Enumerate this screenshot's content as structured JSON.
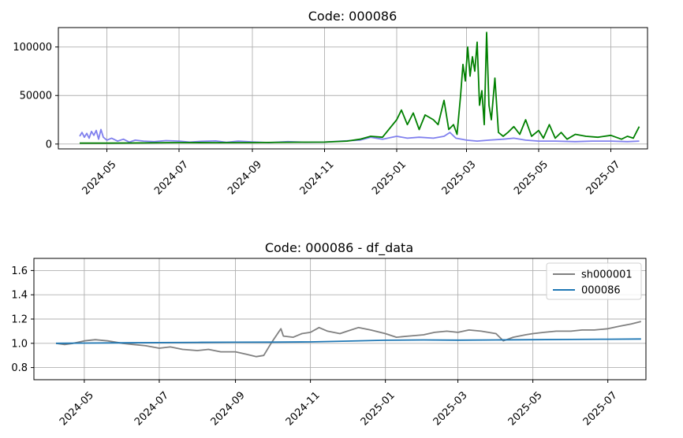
{
  "chart_data": [
    {
      "type": "line",
      "title": "Code: 000086",
      "xlabel": "",
      "ylabel": "",
      "x_range": [
        "2024-03-21",
        "2025-08-01"
      ],
      "ylim": [
        -5000,
        120000
      ],
      "yticks": [
        0,
        50000,
        100000
      ],
      "ytick_labels": [
        "0",
        "50000",
        "100000"
      ],
      "xticks": [
        "2024-05-01",
        "2024-07-01",
        "2024-09-01",
        "2024-11-01",
        "2025-01-01",
        "2025-03-01",
        "2025-05-01",
        "2025-07-01"
      ],
      "xtick_labels": [
        "2024-05",
        "2024-07",
        "2024-09",
        "2024-11",
        "2025-01",
        "2025-03",
        "2025-05",
        "2025-07"
      ],
      "grid": true,
      "legend": "none",
      "series": [
        {
          "color": "#8080ee",
          "x": [
            "2024-04-08",
            "2024-04-10",
            "2024-04-12",
            "2024-04-14",
            "2024-04-16",
            "2024-04-18",
            "2024-04-20",
            "2024-04-22",
            "2024-04-24",
            "2024-04-26",
            "2024-04-28",
            "2024-05-01",
            "2024-05-05",
            "2024-05-10",
            "2024-05-15",
            "2024-05-20",
            "2024-05-25",
            "2024-06-01",
            "2024-06-10",
            "2024-06-20",
            "2024-07-01",
            "2024-07-10",
            "2024-07-20",
            "2024-08-01",
            "2024-08-10",
            "2024-08-20",
            "2024-09-01",
            "2024-09-15",
            "2024-10-01",
            "2024-10-15",
            "2024-11-01",
            "2024-11-15",
            "2024-12-01",
            "2024-12-10",
            "2024-12-20",
            "2025-01-01",
            "2025-01-10",
            "2025-01-20",
            "2025-02-01",
            "2025-02-10",
            "2025-02-15",
            "2025-02-20",
            "2025-02-25",
            "2025-03-01",
            "2025-03-10",
            "2025-03-20",
            "2025-04-01",
            "2025-04-10",
            "2025-04-20",
            "2025-05-01",
            "2025-05-15",
            "2025-06-01",
            "2025-06-15",
            "2025-07-01",
            "2025-07-15",
            "2025-07-25"
          ],
          "y": [
            8000,
            12000,
            7000,
            11000,
            6000,
            13000,
            9000,
            14000,
            5000,
            15000,
            7000,
            4000,
            6000,
            3000,
            5000,
            2000,
            4000,
            3000,
            2500,
            3500,
            3000,
            2000,
            2800,
            3200,
            1800,
            3000,
            2200,
            1500,
            2500,
            1800,
            2000,
            3000,
            4000,
            7000,
            5000,
            8000,
            6000,
            7000,
            6000,
            8000,
            12000,
            6000,
            5000,
            4000,
            3000,
            4000,
            5000,
            6000,
            4000,
            3000,
            3000,
            2500,
            3000,
            3000,
            2500,
            3000
          ]
        },
        {
          "color": "#008000",
          "x": [
            "2024-04-08",
            "2024-05-01",
            "2024-06-01",
            "2024-07-01",
            "2024-08-01",
            "2024-09-01",
            "2024-10-01",
            "2024-11-01",
            "2024-11-20",
            "2024-12-01",
            "2024-12-10",
            "2024-12-20",
            "2025-01-01",
            "2025-01-05",
            "2025-01-10",
            "2025-01-15",
            "2025-01-20",
            "2025-01-25",
            "2025-02-01",
            "2025-02-05",
            "2025-02-10",
            "2025-02-14",
            "2025-02-18",
            "2025-02-21",
            "2025-02-24",
            "2025-02-26",
            "2025-02-28",
            "2025-03-02",
            "2025-03-04",
            "2025-03-06",
            "2025-03-08",
            "2025-03-10",
            "2025-03-12",
            "2025-03-14",
            "2025-03-16",
            "2025-03-18",
            "2025-03-20",
            "2025-03-22",
            "2025-03-25",
            "2025-03-28",
            "2025-04-01",
            "2025-04-05",
            "2025-04-10",
            "2025-04-15",
            "2025-04-20",
            "2025-04-25",
            "2025-05-01",
            "2025-05-05",
            "2025-05-10",
            "2025-05-15",
            "2025-05-20",
            "2025-05-25",
            "2025-06-01",
            "2025-06-10",
            "2025-06-20",
            "2025-07-01",
            "2025-07-10",
            "2025-07-15",
            "2025-07-20",
            "2025-07-25"
          ],
          "y": [
            1000,
            1000,
            1200,
            1500,
            1400,
            1500,
            1800,
            2000,
            3000,
            5000,
            8000,
            7000,
            25000,
            35000,
            20000,
            32000,
            15000,
            30000,
            25000,
            20000,
            45000,
            15000,
            20000,
            10000,
            50000,
            82000,
            65000,
            100000,
            70000,
            90000,
            75000,
            105000,
            40000,
            55000,
            20000,
            115000,
            40000,
            25000,
            68000,
            12000,
            8000,
            12000,
            18000,
            10000,
            25000,
            8000,
            14000,
            6000,
            20000,
            6000,
            12000,
            5000,
            10000,
            8000,
            7000,
            9000,
            5000,
            8000,
            6000,
            18000
          ]
        }
      ]
    },
    {
      "type": "line",
      "title": "Code: 000086 - df_data",
      "xlabel": "",
      "ylabel": "",
      "x_range": [
        "2024-03-21",
        "2025-08-01"
      ],
      "ylim": [
        0.7,
        1.7
      ],
      "yticks": [
        0.8,
        1.0,
        1.2,
        1.4,
        1.6
      ],
      "ytick_labels": [
        "0.8",
        "1.0",
        "1.2",
        "1.4",
        "1.6"
      ],
      "xticks": [
        "2024-05-01",
        "2024-07-01",
        "2024-09-01",
        "2024-11-01",
        "2025-01-01",
        "2025-03-01",
        "2025-05-01",
        "2025-07-01"
      ],
      "xtick_labels": [
        "2024-05",
        "2024-07",
        "2024-09",
        "2024-11",
        "2025-01",
        "2025-03",
        "2025-05",
        "2025-07"
      ],
      "grid": true,
      "legend": "top-right",
      "series": [
        {
          "name": "sh000001",
          "color": "#808080",
          "x": [
            "2024-04-08",
            "2024-04-15",
            "2024-04-22",
            "2024-05-01",
            "2024-05-10",
            "2024-05-20",
            "2024-06-01",
            "2024-06-10",
            "2024-06-20",
            "2024-07-01",
            "2024-07-10",
            "2024-07-20",
            "2024-08-01",
            "2024-08-10",
            "2024-08-20",
            "2024-09-01",
            "2024-09-10",
            "2024-09-18",
            "2024-09-24",
            "2024-09-30",
            "2024-10-08",
            "2024-10-10",
            "2024-10-18",
            "2024-10-25",
            "2024-11-01",
            "2024-11-08",
            "2024-11-15",
            "2024-11-25",
            "2024-12-01",
            "2024-12-10",
            "2024-12-20",
            "2025-01-01",
            "2025-01-10",
            "2025-01-20",
            "2025-02-01",
            "2025-02-10",
            "2025-02-20",
            "2025-03-01",
            "2025-03-10",
            "2025-03-20",
            "2025-04-01",
            "2025-04-07",
            "2025-04-15",
            "2025-04-25",
            "2025-05-01",
            "2025-05-10",
            "2025-05-20",
            "2025-06-01",
            "2025-06-10",
            "2025-06-20",
            "2025-07-01",
            "2025-07-10",
            "2025-07-20",
            "2025-07-28"
          ],
          "y": [
            1.0,
            0.99,
            1.0,
            1.02,
            1.03,
            1.02,
            1.0,
            0.99,
            0.98,
            0.96,
            0.97,
            0.95,
            0.94,
            0.95,
            0.93,
            0.93,
            0.91,
            0.89,
            0.9,
            1.0,
            1.12,
            1.06,
            1.05,
            1.08,
            1.09,
            1.13,
            1.1,
            1.08,
            1.1,
            1.13,
            1.11,
            1.08,
            1.05,
            1.06,
            1.07,
            1.09,
            1.1,
            1.09,
            1.11,
            1.1,
            1.08,
            1.02,
            1.05,
            1.07,
            1.08,
            1.09,
            1.1,
            1.1,
            1.11,
            1.11,
            1.12,
            1.14,
            1.16,
            1.18
          ]
        },
        {
          "name": "000086",
          "color": "#1f77b4",
          "x": [
            "2024-04-08",
            "2024-05-01",
            "2024-06-01",
            "2024-07-01",
            "2024-08-01",
            "2024-09-01",
            "2024-10-01",
            "2024-11-01",
            "2024-12-01",
            "2025-01-01",
            "2025-02-01",
            "2025-03-01",
            "2025-04-01",
            "2025-05-01",
            "2025-06-01",
            "2025-07-01",
            "2025-07-28"
          ],
          "y": [
            1.0,
            1.002,
            1.004,
            1.006,
            1.008,
            1.009,
            1.01,
            1.012,
            1.018,
            1.025,
            1.028,
            1.026,
            1.028,
            1.03,
            1.032,
            1.034,
            1.036
          ]
        }
      ]
    }
  ]
}
